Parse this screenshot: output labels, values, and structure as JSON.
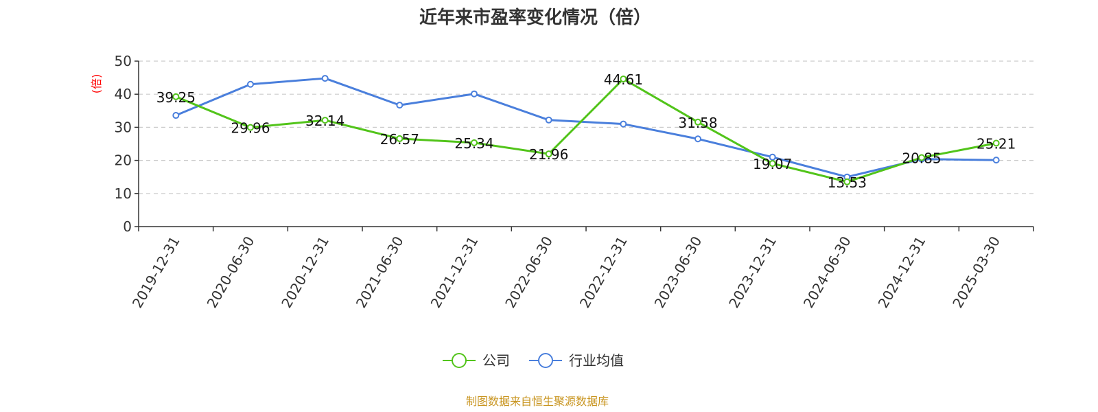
{
  "chart_data": {
    "type": "line",
    "title": "近年来市盈率变化情况（倍）",
    "ylabel": "(倍)",
    "xlabel": "",
    "ylim": [
      0,
      50
    ],
    "yticks": [
      0,
      10,
      20,
      30,
      40,
      50
    ],
    "grid": true,
    "legend_position": "bottom-center",
    "categories": [
      "2019-12-31",
      "2020-06-30",
      "2020-12-31",
      "2021-06-30",
      "2021-12-31",
      "2022-06-30",
      "2022-12-31",
      "2023-06-30",
      "2023-12-31",
      "2024-06-30",
      "2024-12-31",
      "2025-03-30"
    ],
    "series": [
      {
        "name": "公司",
        "color": "#52c41a",
        "show_labels": true,
        "values": [
          39.25,
          29.96,
          32.14,
          26.57,
          25.34,
          21.96,
          44.61,
          31.58,
          19.07,
          13.53,
          20.85,
          25.21
        ]
      },
      {
        "name": "行业均值",
        "color": "#4a7fdc",
        "show_labels": false,
        "values": [
          33.6,
          43.0,
          44.8,
          36.7,
          40.1,
          32.2,
          31.0,
          26.5,
          21.0,
          15.0,
          20.4,
          20.1
        ]
      }
    ]
  },
  "footer": {
    "source": "制图数据来自恒生聚源数据库",
    "color": "#c8941e"
  }
}
